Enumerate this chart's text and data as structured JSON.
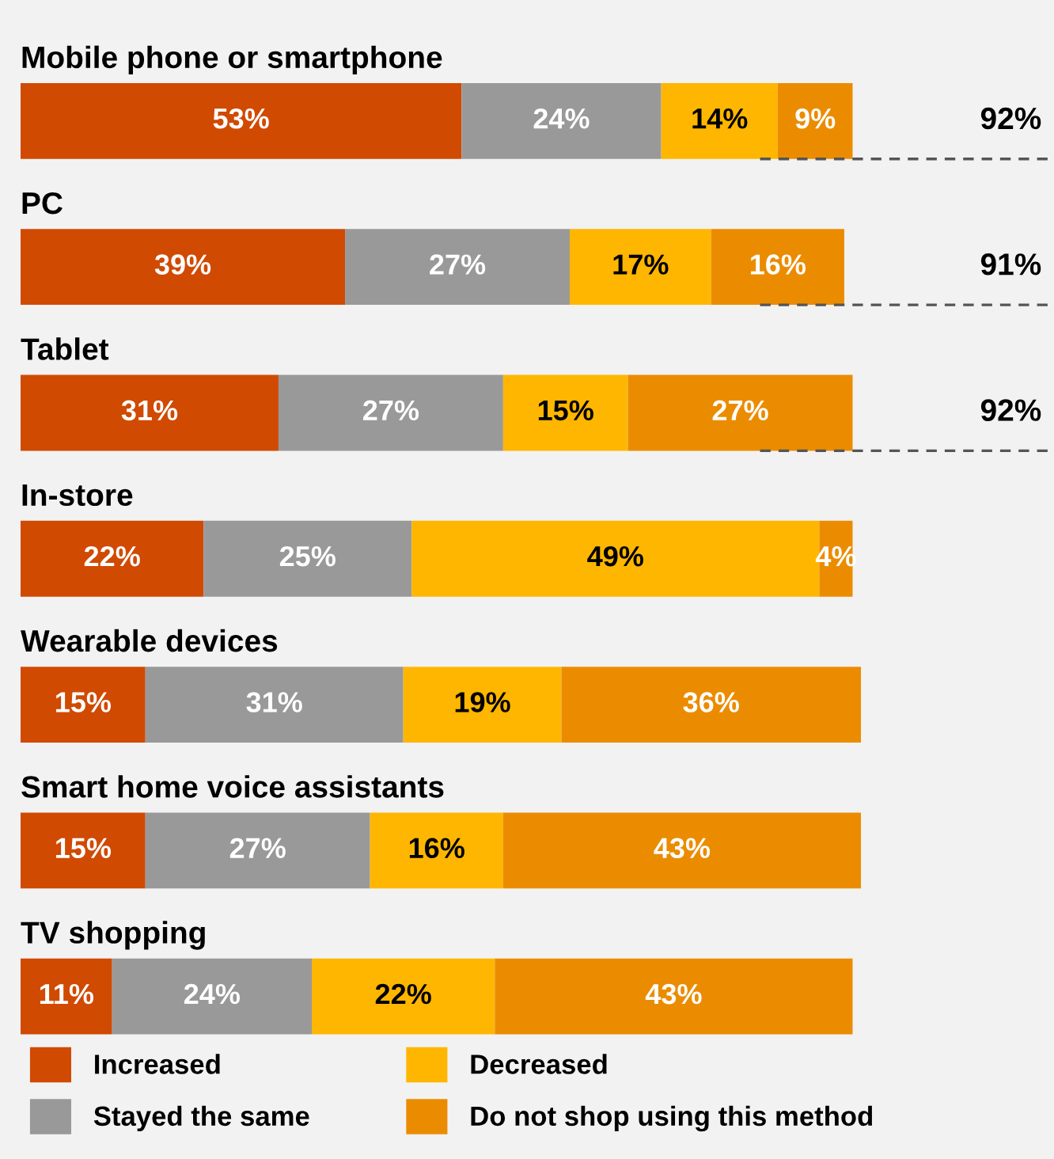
{
  "chart_data": {
    "type": "bar",
    "orientation": "horizontal",
    "stacked": true,
    "legend": "bottom",
    "categories": [
      "Mobile phone or smartphone",
      "PC",
      "Tablet",
      "In-store",
      "Wearable devices",
      "Smart home voice assistants",
      "TV shopping"
    ],
    "series": [
      {
        "name": "Increased",
        "color": "#d04a02",
        "values": [
          53,
          39,
          31,
          22,
          15,
          15,
          11
        ],
        "value_labels": [
          "53%",
          "39%",
          "31%",
          "22%",
          "15%",
          "15%",
          "11%"
        ]
      },
      {
        "name": "Stayed the same",
        "color": "#999999",
        "values": [
          24,
          27,
          27,
          25,
          31,
          27,
          24
        ],
        "value_labels": [
          "24%",
          "27%",
          "27%",
          "25%",
          "31%",
          "27%",
          "24%"
        ]
      },
      {
        "name": "Decreased",
        "color": "#ffb600",
        "values": [
          14,
          17,
          15,
          49,
          19,
          16,
          22
        ],
        "value_labels": [
          "14%",
          "17%",
          "15%",
          "49%",
          "19%",
          "16%",
          "22%"
        ]
      },
      {
        "name": "Do not shop using this method",
        "color": "#eb8c00",
        "values": [
          9,
          16,
          27,
          4,
          36,
          43,
          43
        ],
        "value_labels": [
          "9%",
          "16%",
          "27%",
          "4%",
          "36%",
          "43%",
          "43%"
        ]
      }
    ],
    "annotations": [
      "92%",
      "91%",
      "92%"
    ]
  }
}
